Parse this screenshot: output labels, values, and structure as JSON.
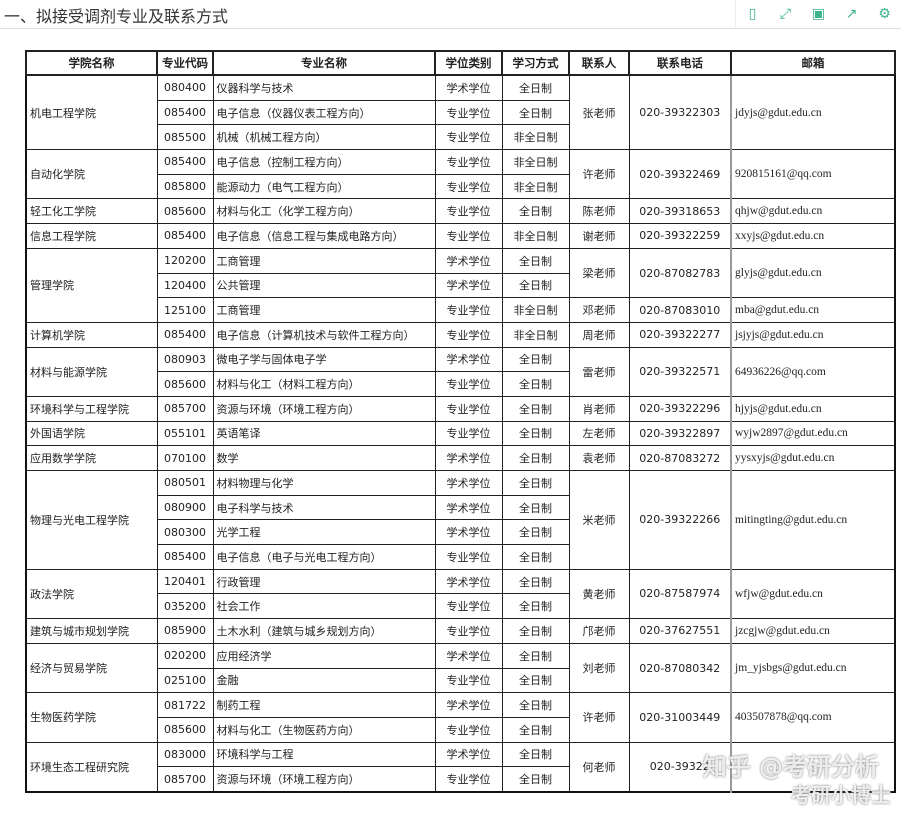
{
  "header": {
    "title": "一、拟接受调剂专业及联系方式",
    "tools": [
      {
        "icon": "mobile-icon",
        "glyph": "▯"
      },
      {
        "icon": "fullscreen-icon",
        "glyph": "⤢"
      },
      {
        "icon": "save-icon",
        "glyph": "▣"
      },
      {
        "icon": "share-icon",
        "glyph": "↗"
      },
      {
        "icon": "gear-icon",
        "glyph": "⚙"
      }
    ],
    "accent": "#3bb58a"
  },
  "table": {
    "columns": [
      "学院名称",
      "专业代码",
      "专业名称",
      "学位类别",
      "学习方式",
      "联系人",
      "联系电话",
      "邮箱"
    ],
    "colleges": [
      {
        "name": "机电工程学院",
        "contacts": [
          {
            "name": "张老师",
            "phone": "020-39322303",
            "email": "jdyjs@gdut.edu.cn",
            "majors": [
              [
                "080400",
                "仪器科学与技术",
                "学术学位",
                "全日制"
              ],
              [
                "085400",
                "电子信息（仪器仪表工程方向）",
                "专业学位",
                "全日制"
              ],
              [
                "085500",
                "机械（机械工程方向）",
                "专业学位",
                "非全日制"
              ]
            ]
          }
        ]
      },
      {
        "name": "自动化学院",
        "contacts": [
          {
            "name": "许老师",
            "phone": "020-39322469",
            "email": "920815161@qq.com",
            "majors": [
              [
                "085400",
                "电子信息（控制工程方向）",
                "专业学位",
                "非全日制"
              ],
              [
                "085800",
                "能源动力（电气工程方向）",
                "专业学位",
                "非全日制"
              ]
            ]
          }
        ]
      },
      {
        "name": "轻工化工学院",
        "contacts": [
          {
            "name": "陈老师",
            "phone": "020-39318653",
            "email": "qhjw@gdut.edu.cn",
            "majors": [
              [
                "085600",
                "材料与化工（化学工程方向）",
                "专业学位",
                "全日制"
              ]
            ]
          }
        ]
      },
      {
        "name": "信息工程学院",
        "contacts": [
          {
            "name": "谢老师",
            "phone": "020-39322259",
            "email": "xxyjs@gdut.edu.cn",
            "majors": [
              [
                "085400",
                "电子信息（信息工程与集成电路方向）",
                "专业学位",
                "非全日制"
              ]
            ]
          }
        ]
      },
      {
        "name": "管理学院",
        "contacts": [
          {
            "name": "梁老师",
            "phone": "020-87082783",
            "email": "glyjs@gdut.edu.cn",
            "majors": [
              [
                "120200",
                "工商管理",
                "学术学位",
                "全日制"
              ],
              [
                "120400",
                "公共管理",
                "学术学位",
                "全日制"
              ]
            ]
          },
          {
            "name": "邓老师",
            "phone": "020-87083010",
            "email": "mba@gdut.edu.cn",
            "majors": [
              [
                "125100",
                "工商管理",
                "专业学位",
                "非全日制"
              ]
            ]
          }
        ]
      },
      {
        "name": "计算机学院",
        "contacts": [
          {
            "name": "周老师",
            "phone": "020-39322277",
            "email": "jsjyjs@gdut.edu.cn",
            "majors": [
              [
                "085400",
                "电子信息（计算机技术与软件工程方向）",
                "专业学位",
                "非全日制"
              ]
            ]
          }
        ]
      },
      {
        "name": "材料与能源学院",
        "contacts": [
          {
            "name": "雷老师",
            "phone": "020-39322571",
            "email": "64936226@qq.com",
            "majors": [
              [
                "080903",
                "微电子学与固体电子学",
                "学术学位",
                "全日制"
              ],
              [
                "085600",
                "材料与化工（材料工程方向）",
                "专业学位",
                "全日制"
              ]
            ]
          }
        ]
      },
      {
        "name": "环境科学与工程学院",
        "contacts": [
          {
            "name": "肖老师",
            "phone": "020-39322296",
            "email": "hjyjs@gdut.edu.cn",
            "majors": [
              [
                "085700",
                "资源与环境（环境工程方向）",
                "专业学位",
                "全日制"
              ]
            ]
          }
        ]
      },
      {
        "name": "外国语学院",
        "contacts": [
          {
            "name": "左老师",
            "phone": "020-39322897",
            "email": "wyjw2897@gdut.edu.cn",
            "majors": [
              [
                "055101",
                "英语笔译",
                "专业学位",
                "全日制"
              ]
            ]
          }
        ]
      },
      {
        "name": "应用数学学院",
        "contacts": [
          {
            "name": "袁老师",
            "phone": "020-87083272",
            "email": "yysxyjs@gdut.edu.cn",
            "majors": [
              [
                "070100",
                "数学",
                "学术学位",
                "全日制"
              ]
            ]
          }
        ]
      },
      {
        "name": "物理与光电工程学院",
        "contacts": [
          {
            "name": "米老师",
            "phone": "020-39322266",
            "email": "mitingting@gdut.edu.cn",
            "majors": [
              [
                "080501",
                "材料物理与化学",
                "学术学位",
                "全日制"
              ],
              [
                "080900",
                "电子科学与技术",
                "学术学位",
                "全日制"
              ],
              [
                "080300",
                "光学工程",
                "学术学位",
                "全日制"
              ],
              [
                "085400",
                "电子信息（电子与光电工程方向）",
                "专业学位",
                "全日制"
              ]
            ]
          }
        ]
      },
      {
        "name": "政法学院",
        "contacts": [
          {
            "name": "黄老师",
            "phone": "020-87587974",
            "email": "wfjw@gdut.edu.cn",
            "majors": [
              [
                "120401",
                "行政管理",
                "学术学位",
                "全日制"
              ],
              [
                "035200",
                "社会工作",
                "专业学位",
                "全日制"
              ]
            ]
          }
        ]
      },
      {
        "name": "建筑与城市规划学院",
        "contacts": [
          {
            "name": "邝老师",
            "phone": "020-37627551",
            "email": "jzcgjw@gdut.edu.cn",
            "majors": [
              [
                "085900",
                "土木水利（建筑与城乡规划方向）",
                "专业学位",
                "全日制"
              ]
            ]
          }
        ]
      },
      {
        "name": "经济与贸易学院",
        "contacts": [
          {
            "name": "刘老师",
            "phone": "020-87080342",
            "email": "jm_yjsbgs@gdut.edu.cn",
            "majors": [
              [
                "020200",
                "应用经济学",
                "学术学位",
                "全日制"
              ],
              [
                "025100",
                "金融",
                "专业学位",
                "全日制"
              ]
            ]
          }
        ]
      },
      {
        "name": "生物医药学院",
        "contacts": [
          {
            "name": "许老师",
            "phone": "020-31003449",
            "email": "403507878@qq.com",
            "majors": [
              [
                "081722",
                "制药工程",
                "学术学位",
                "全日制"
              ],
              [
                "085600",
                "材料与化工（生物医药方向）",
                "专业学位",
                "全日制"
              ]
            ]
          }
        ]
      },
      {
        "name": "环境生态工程研究院",
        "contacts": [
          {
            "name": "何老师",
            "phone": "020-39322",
            "email": "",
            "majors": [
              [
                "083000",
                "环境科学与工程",
                "学术学位",
                "全日制"
              ],
              [
                "085700",
                "资源与环境（环境工程方向）",
                "专业学位",
                "全日制"
              ]
            ]
          }
        ]
      }
    ]
  },
  "watermark": {
    "line1": "知乎 @考研分析",
    "line2": "考研小博士"
  }
}
